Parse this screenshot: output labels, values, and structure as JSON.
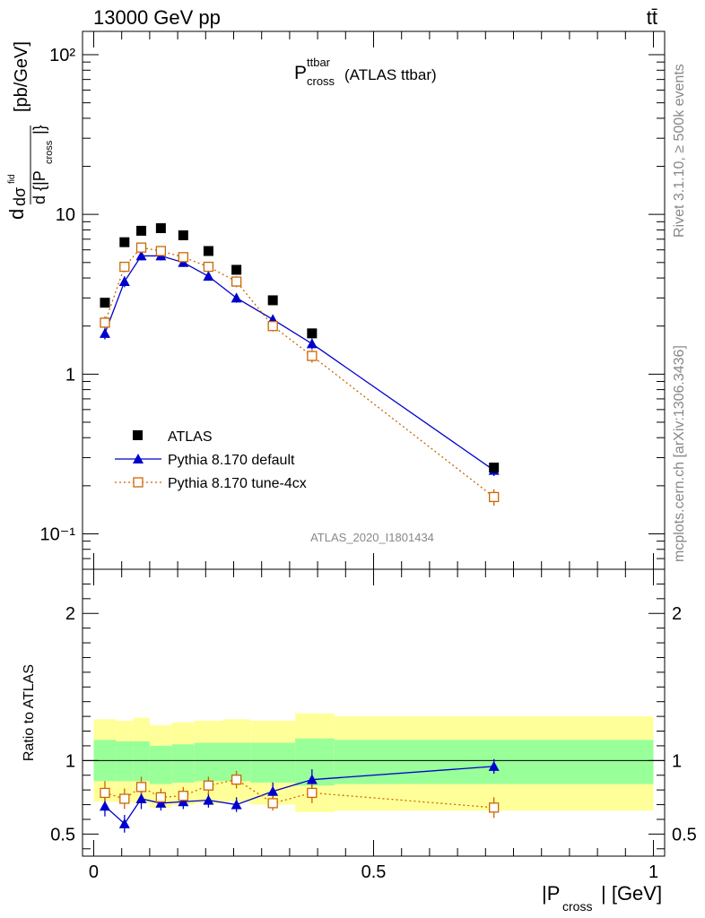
{
  "header": {
    "energy_label": "13000 GeV pp",
    "process_label": "tt̄"
  },
  "side": {
    "rivet_label": "Rivet 3.1.10, ≥ 500k events",
    "mcplots_label": "mcplots.cern.ch [arXiv:1306.3436]"
  },
  "chart_data": [
    {
      "type": "scatter",
      "panel": "main",
      "title_main": "P",
      "title_sup": "ttbar",
      "title_sub": "cross",
      "title_rest": "(ATLAS ttbar)",
      "ylabel": "dσ/d{|P_cross|} [pb/GeV]",
      "yscale": "log",
      "ylim": [
        0.06,
        140
      ],
      "xlim": [
        -0.02,
        1.02
      ],
      "watermark": "ATLAS_2020_I1801434",
      "y_tick_labels": [
        "10⁻¹",
        "1",
        "10",
        "10²"
      ],
      "legend_position": "lower-left",
      "series": [
        {
          "name": "ATLAS",
          "color": "#000000",
          "marker": "square",
          "x": [
            0.02,
            0.055,
            0.085,
            0.12,
            0.16,
            0.205,
            0.255,
            0.32,
            0.39,
            0.715
          ],
          "y": [
            2.8,
            6.7,
            7.9,
            8.2,
            7.4,
            5.9,
            4.5,
            2.9,
            1.8,
            0.26
          ]
        },
        {
          "name": "Pythia 8.170 default",
          "color": "#0000cc",
          "marker": "triangle",
          "line": "solid",
          "x": [
            0.02,
            0.055,
            0.085,
            0.12,
            0.16,
            0.205,
            0.255,
            0.32,
            0.39,
            0.715
          ],
          "y": [
            1.8,
            3.8,
            5.5,
            5.5,
            5.0,
            4.1,
            3.0,
            2.2,
            1.55,
            0.25
          ],
          "err": [
            0.15,
            0.3,
            0.35,
            0.35,
            0.3,
            0.25,
            0.2,
            0.15,
            0.12,
            0.02
          ]
        },
        {
          "name": "Pythia 8.170 tune-4cx",
          "color": "#cc6600",
          "marker": "open-square",
          "line": "dotted",
          "x": [
            0.02,
            0.055,
            0.085,
            0.12,
            0.16,
            0.205,
            0.255,
            0.32,
            0.39,
            0.715
          ],
          "y": [
            2.1,
            4.7,
            6.2,
            5.9,
            5.4,
            4.7,
            3.8,
            2.0,
            1.3,
            0.17
          ],
          "err": [
            0.2,
            0.35,
            0.4,
            0.4,
            0.35,
            0.3,
            0.3,
            0.15,
            0.12,
            0.02
          ]
        }
      ]
    },
    {
      "type": "scatter",
      "panel": "ratio",
      "ylabel": "Ratio to ATLAS",
      "ylim": [
        0.35,
        2.3
      ],
      "xlim": [
        -0.02,
        1.02
      ],
      "xlabel_main": "|P",
      "xlabel_sub": "cross",
      "xlabel_rest": "| [GeV]",
      "x_tick_labels": [
        "0",
        "0.5",
        "1"
      ],
      "y_tick_labels": [
        "0.5",
        "1",
        "2"
      ],
      "bin_edges": [
        0.0,
        0.04,
        0.07,
        0.1,
        0.14,
        0.18,
        0.23,
        0.28,
        0.36,
        0.43,
        1.0
      ],
      "band_outer": [
        [
          0.72,
          1.28
        ],
        [
          0.72,
          1.27
        ],
        [
          0.71,
          1.29
        ],
        [
          0.68,
          1.24
        ],
        [
          0.7,
          1.26
        ],
        [
          0.71,
          1.27
        ],
        [
          0.72,
          1.28
        ],
        [
          0.7,
          1.27
        ],
        [
          0.65,
          1.32
        ],
        [
          0.66,
          1.3
        ]
      ],
      "band_inner": [
        [
          0.86,
          1.14
        ],
        [
          0.86,
          1.13
        ],
        [
          0.86,
          1.13
        ],
        [
          0.84,
          1.1
        ],
        [
          0.85,
          1.11
        ],
        [
          0.86,
          1.12
        ],
        [
          0.86,
          1.12
        ],
        [
          0.85,
          1.12
        ],
        [
          0.83,
          1.15
        ],
        [
          0.84,
          1.14
        ]
      ],
      "series": [
        {
          "name": "Pythia 8.170 default",
          "color": "#0000cc",
          "x": [
            0.02,
            0.055,
            0.085,
            0.12,
            0.16,
            0.205,
            0.255,
            0.32,
            0.39,
            0.715
          ],
          "y": [
            0.69,
            0.57,
            0.74,
            0.71,
            0.72,
            0.73,
            0.7,
            0.79,
            0.87,
            0.96
          ],
          "err": [
            0.07,
            0.06,
            0.07,
            0.05,
            0.05,
            0.05,
            0.05,
            0.06,
            0.07,
            0.05
          ]
        },
        {
          "name": "Pythia 8.170 tune-4cx",
          "color": "#cc6600",
          "x": [
            0.02,
            0.055,
            0.085,
            0.12,
            0.16,
            0.205,
            0.255,
            0.32,
            0.39,
            0.715
          ],
          "y": [
            0.78,
            0.74,
            0.82,
            0.75,
            0.76,
            0.83,
            0.87,
            0.71,
            0.78,
            0.68
          ],
          "err": [
            0.08,
            0.07,
            0.07,
            0.06,
            0.06,
            0.06,
            0.06,
            0.05,
            0.07,
            0.07
          ]
        }
      ]
    }
  ]
}
